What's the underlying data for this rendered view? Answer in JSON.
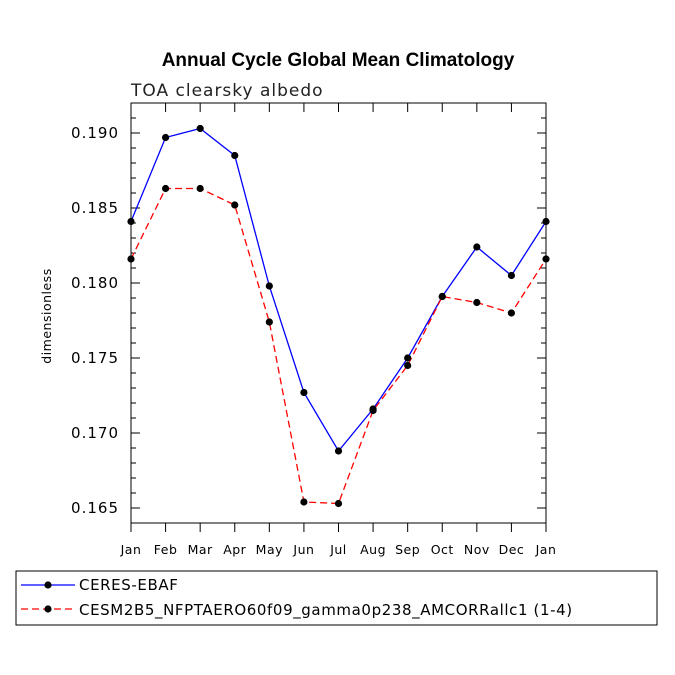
{
  "chart_data": {
    "type": "line",
    "title": "Annual Cycle Global Mean Climatology",
    "subtitle": "TOA clearsky albedo",
    "xlabel": "",
    "ylabel": "dimensionless",
    "categories": [
      "Jan",
      "Feb",
      "Mar",
      "Apr",
      "May",
      "Jun",
      "Jul",
      "Aug",
      "Sep",
      "Oct",
      "Nov",
      "Dec",
      "Jan"
    ],
    "ylim": [
      0.164,
      0.192
    ],
    "yticks": [
      0.165,
      0.17,
      0.175,
      0.18,
      0.185,
      0.19
    ],
    "ytick_labels": [
      "0.165",
      "0.170",
      "0.175",
      "0.180",
      "0.185",
      "0.190"
    ],
    "grid": false,
    "legend_position": "bottom-left",
    "series": [
      {
        "name": "CERES-EBAF",
        "color": "#0000ff",
        "style": "solid",
        "values": [
          0.1841,
          0.1897,
          0.1903,
          0.1885,
          0.1798,
          0.1727,
          0.1688,
          0.1716,
          0.175,
          0.1791,
          0.1824,
          0.1805,
          0.1841
        ]
      },
      {
        "name": "CESM2B5_NFPTAERO60f09_gamma0p238_AMCORRallc1 (1-4)",
        "color": "#ff0000",
        "style": "dashed",
        "values": [
          0.1816,
          0.1863,
          0.1863,
          0.1852,
          0.1774,
          0.1654,
          0.1653,
          0.1715,
          0.1745,
          0.1791,
          0.1787,
          0.178,
          0.1816
        ]
      }
    ]
  }
}
